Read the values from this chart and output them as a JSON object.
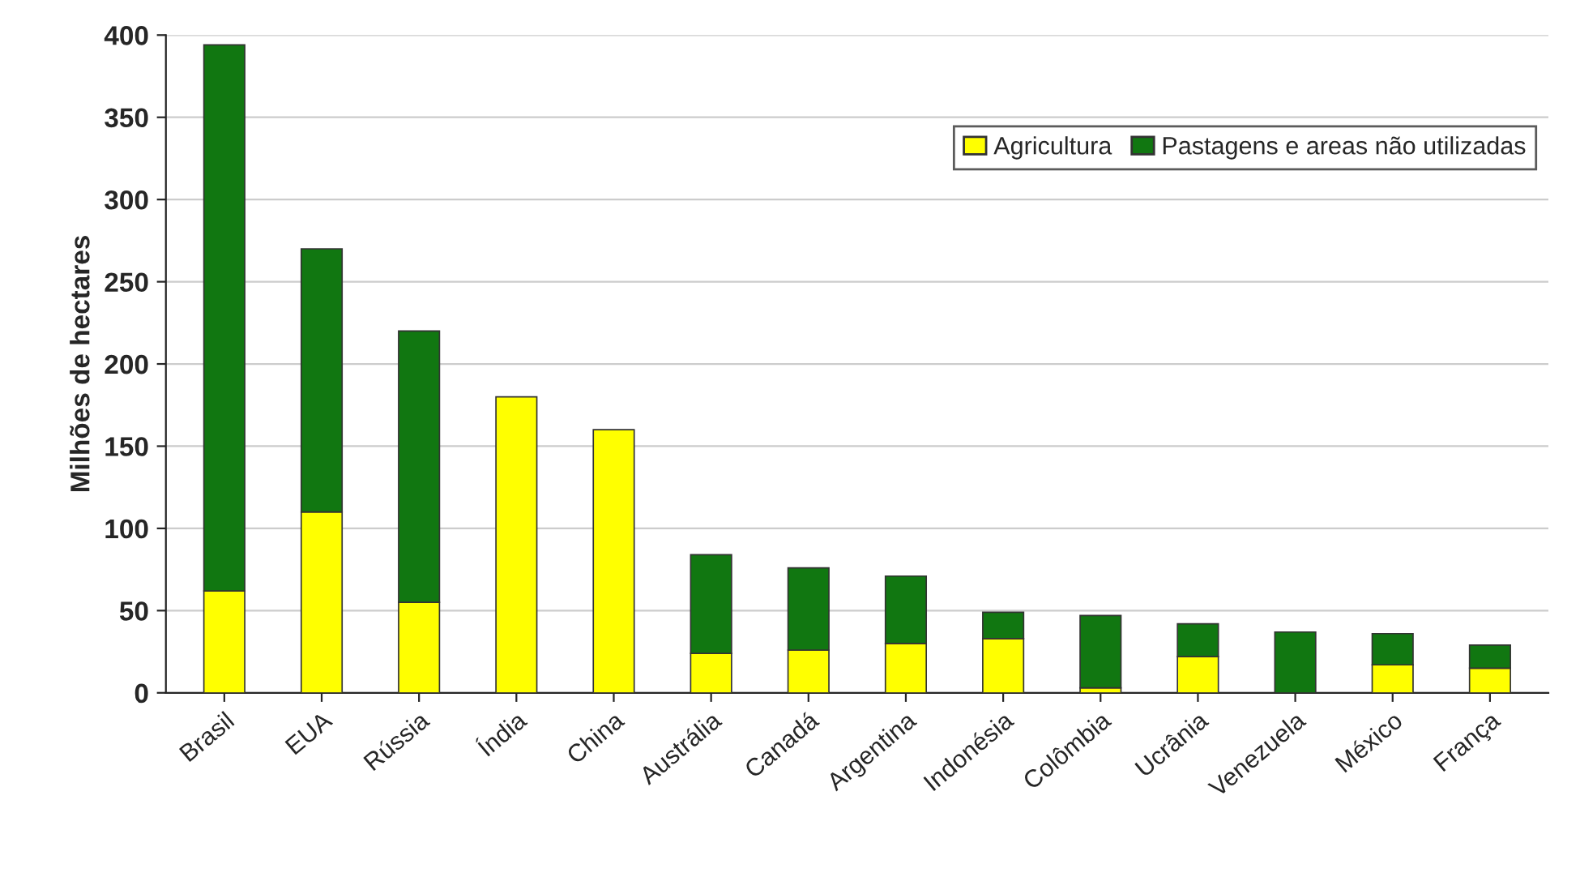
{
  "chart_data": {
    "type": "bar",
    "stacked": true,
    "ylabel": "Milhões de hectares",
    "categories": [
      "Brasil",
      "EUA",
      "Rússia",
      "Índia",
      "China",
      "Austrália",
      "Canadá",
      "Argentina",
      "Indonésia",
      "Colômbia",
      "Ucrânia",
      "Venezuela",
      "México",
      "França"
    ],
    "series": [
      {
        "name": "Agricultura",
        "color": "#ffff00",
        "values": [
          62,
          110,
          55,
          180,
          160,
          24,
          26,
          30,
          33,
          3,
          22,
          null,
          17,
          15
        ]
      },
      {
        "name": "Pastagens e areas não utilizadas",
        "color": "#117711",
        "values": [
          332,
          160,
          165,
          null,
          null,
          60,
          50,
          41,
          16,
          44,
          20,
          37,
          19,
          14
        ]
      }
    ],
    "ylim": [
      0,
      400
    ],
    "yticks": [
      0,
      50,
      100,
      150,
      200,
      250,
      300,
      350,
      400
    ],
    "grid": "y",
    "legend": "top right"
  }
}
